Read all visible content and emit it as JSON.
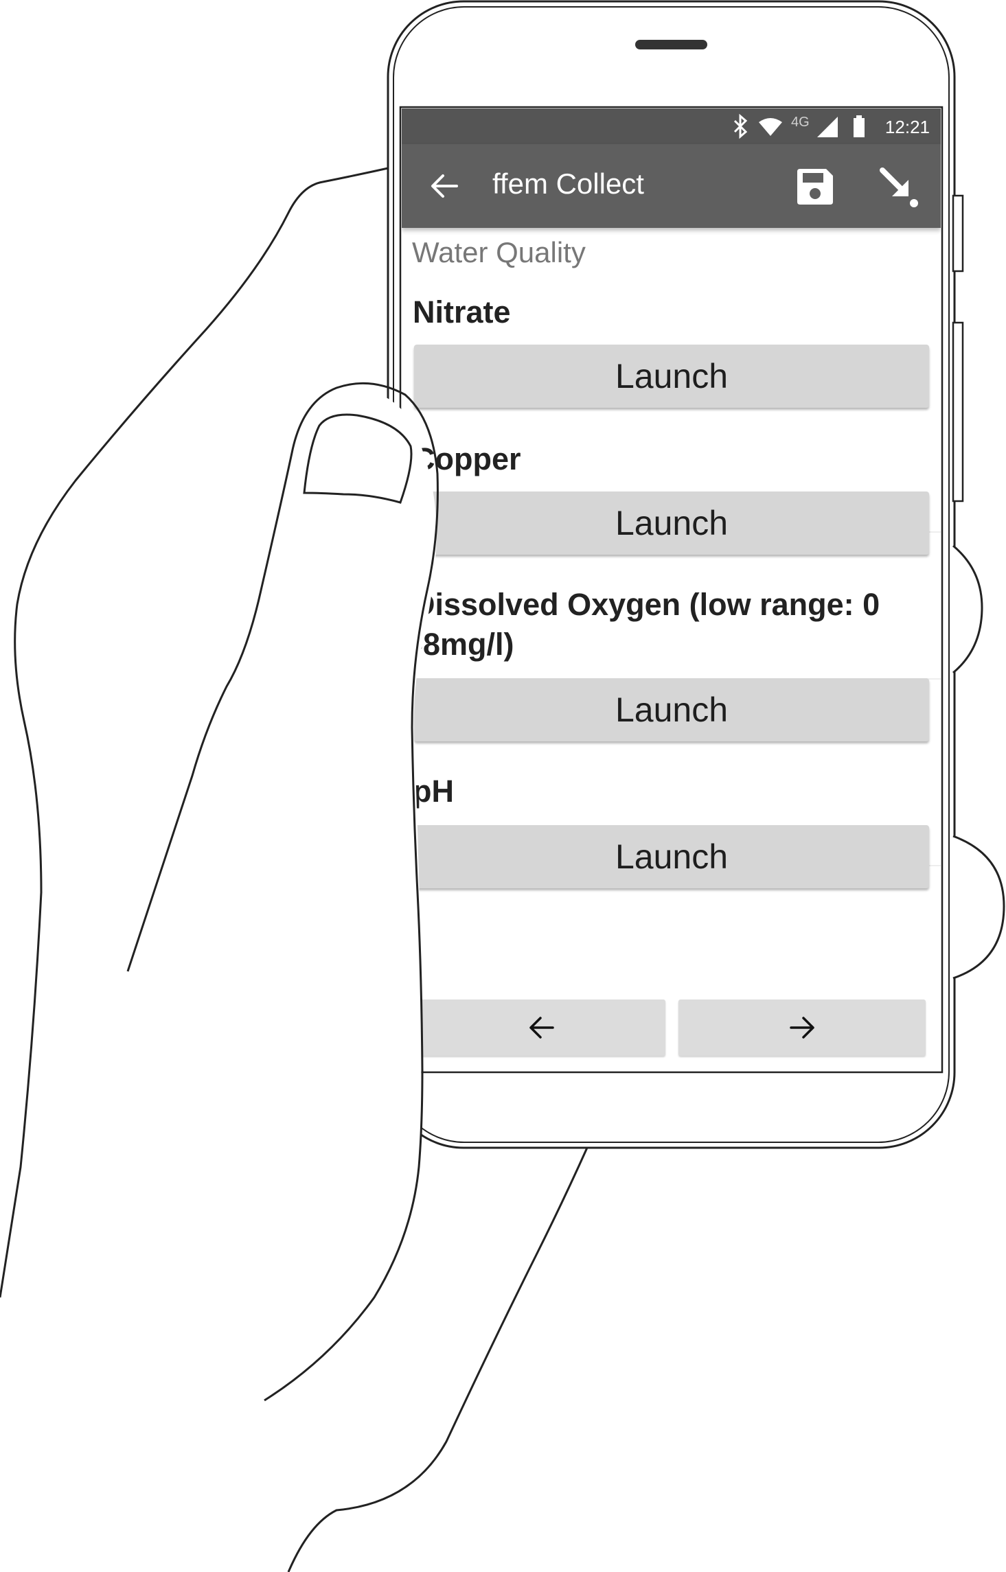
{
  "status_bar": {
    "time": "12:21",
    "network": "4G"
  },
  "toolbar": {
    "title": "ffem Collect"
  },
  "form": {
    "group_label": "Water Quality",
    "questions": [
      {
        "label": "Nitrate",
        "button": "Launch"
      },
      {
        "label": "Copper",
        "button": "Launch"
      },
      {
        "label": "Dissolved Oxygen (low range: 0 -8mg/l)",
        "button": "Launch"
      },
      {
        "label": "pH",
        "button": "Launch"
      }
    ]
  },
  "icons": {
    "back": "back-arrow-icon",
    "save": "save-icon",
    "jump": "jump-to-icon",
    "bluetooth": "bluetooth-icon",
    "wifi": "wifi-icon",
    "signal": "signal-icon",
    "battery": "battery-icon",
    "prev": "previous-arrow-icon",
    "next": "next-arrow-icon"
  },
  "colors": {
    "status_bar": "#555555",
    "toolbar": "#5f5f5f",
    "button": "#d6d6d6",
    "group_label": "#777777"
  }
}
